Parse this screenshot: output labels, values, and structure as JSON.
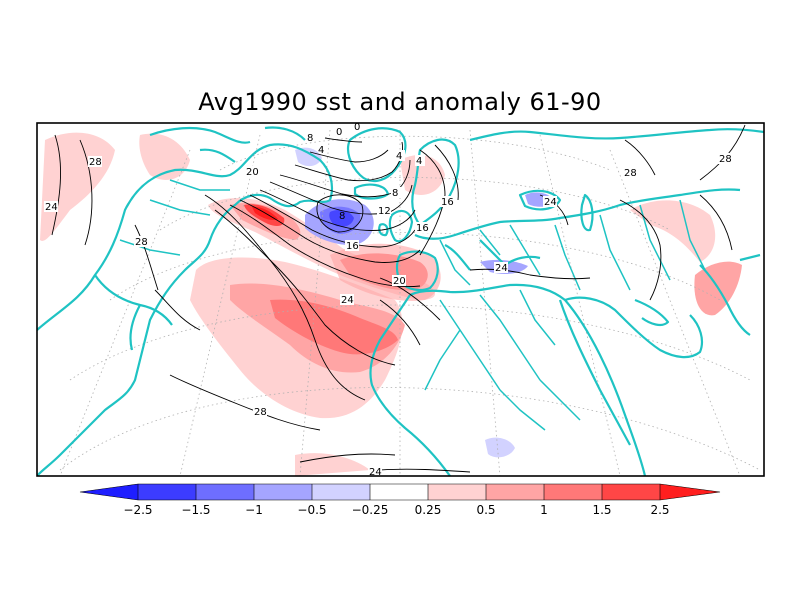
{
  "title": "Avg1990 sst and anomaly 61-90",
  "colors": {
    "coast": "#1fc3c3",
    "contour": "#000000",
    "grid": "#b0b0b0",
    "neg": [
      "#1e1eff",
      "#4646ff",
      "#7878ff",
      "#a5a5ff",
      "#d2d2ff"
    ],
    "pos": [
      "#ffd2d2",
      "#ffa5a5",
      "#ff7878",
      "#ff4646",
      "#ff1e1e"
    ]
  },
  "contour_labels": [
    {
      "text": "28"
    },
    {
      "text": "24"
    },
    {
      "text": "28"
    },
    {
      "text": "20"
    },
    {
      "text": "8"
    },
    {
      "text": "4"
    },
    {
      "text": "0"
    },
    {
      "text": "0"
    },
    {
      "text": "4"
    },
    {
      "text": "4"
    },
    {
      "text": "8"
    },
    {
      "text": "8"
    },
    {
      "text": "12"
    },
    {
      "text": "16"
    },
    {
      "text": "16"
    },
    {
      "text": "16"
    },
    {
      "text": "20"
    },
    {
      "text": "24"
    },
    {
      "text": "28"
    },
    {
      "text": "24"
    },
    {
      "text": "24"
    },
    {
      "text": "24"
    },
    {
      "text": "28"
    },
    {
      "text": "28"
    }
  ],
  "colorbar": {
    "labels": [
      "-2.5",
      "-1.5",
      "-1",
      "-0.5",
      "-0.25",
      "0.25",
      "0.5",
      "1",
      "1.5",
      "2.5"
    ]
  }
}
